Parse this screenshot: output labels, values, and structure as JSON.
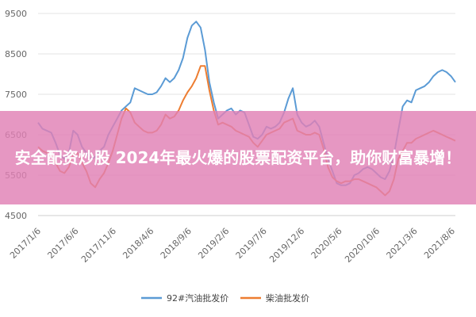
{
  "chart_data": {
    "type": "line",
    "title": "",
    "xlabel": "",
    "ylabel": "",
    "ylim": [
      4500,
      9500
    ],
    "yticks": [
      4500,
      5500,
      6500,
      7500,
      8500,
      9500
    ],
    "x_tick_labels": [
      "2017/1/6",
      "2017/6/6",
      "2017/11/6",
      "2018/4/6",
      "2018/9/6",
      "2019/2/6",
      "2019/7/6",
      "2019/12/6",
      "2020/5/6",
      "2020/10/6",
      "2021/3/6",
      "2021/8/6"
    ],
    "grid": true,
    "legend_position": "bottom",
    "series": [
      {
        "name": "92#汽油批发价",
        "color": "#5b9bd5",
        "values": [
          6800,
          6650,
          6600,
          6550,
          6300,
          6000,
          5900,
          6050,
          6600,
          6500,
          6200,
          6050,
          5900,
          5950,
          6100,
          6200,
          6500,
          6700,
          6900,
          7100,
          7200,
          7300,
          7650,
          7600,
          7550,
          7500,
          7500,
          7550,
          7700,
          7900,
          7800,
          7900,
          8100,
          8400,
          8900,
          9200,
          9300,
          9150,
          8600,
          7800,
          7300,
          6900,
          7000,
          7100,
          7150,
          7000,
          7100,
          7050,
          6750,
          6450,
          6400,
          6500,
          6700,
          6650,
          6700,
          6800,
          7050,
          7400,
          7650,
          7000,
          6800,
          6700,
          6750,
          6850,
          6700,
          6300,
          5900,
          5600,
          5300,
          5250,
          5250,
          5300,
          5500,
          5550,
          5650,
          5700,
          5650,
          5550,
          5450,
          5400,
          5600,
          6000,
          6600,
          7200,
          7350,
          7300,
          7600,
          7650,
          7700,
          7800,
          7950,
          8050,
          8100,
          8050,
          7950,
          7800
        ]
      },
      {
        "name": "柴油批发价",
        "color": "#ed7d31",
        "values": [
          6200,
          6100,
          6050,
          6000,
          5800,
          5600,
          5550,
          5700,
          6000,
          6050,
          5800,
          5600,
          5300,
          5200,
          5400,
          5550,
          5800,
          6100,
          6500,
          6900,
          7150,
          7050,
          6800,
          6700,
          6600,
          6550,
          6550,
          6600,
          6750,
          7000,
          6900,
          6950,
          7100,
          7350,
          7550,
          7700,
          7900,
          8200,
          8200,
          7600,
          7100,
          6750,
          6800,
          6750,
          6700,
          6600,
          6550,
          6500,
          6450,
          6300,
          6200,
          6350,
          6500,
          6550,
          6600,
          6650,
          6800,
          6850,
          6900,
          6600,
          6550,
          6500,
          6500,
          6550,
          6500,
          6150,
          5700,
          5450,
          5350,
          5300,
          5350,
          5350,
          5400,
          5400,
          5350,
          5300,
          5250,
          5200,
          5100,
          5000,
          5100,
          5400,
          5900,
          6100,
          6300,
          6300,
          6400,
          6450,
          6500,
          6550,
          6600,
          6550,
          6500,
          6450,
          6400,
          6350
        ]
      }
    ]
  },
  "overlay": {
    "text": "安全配资炒股 2024年最火爆的股票配资平台，助你财富暴增！"
  }
}
